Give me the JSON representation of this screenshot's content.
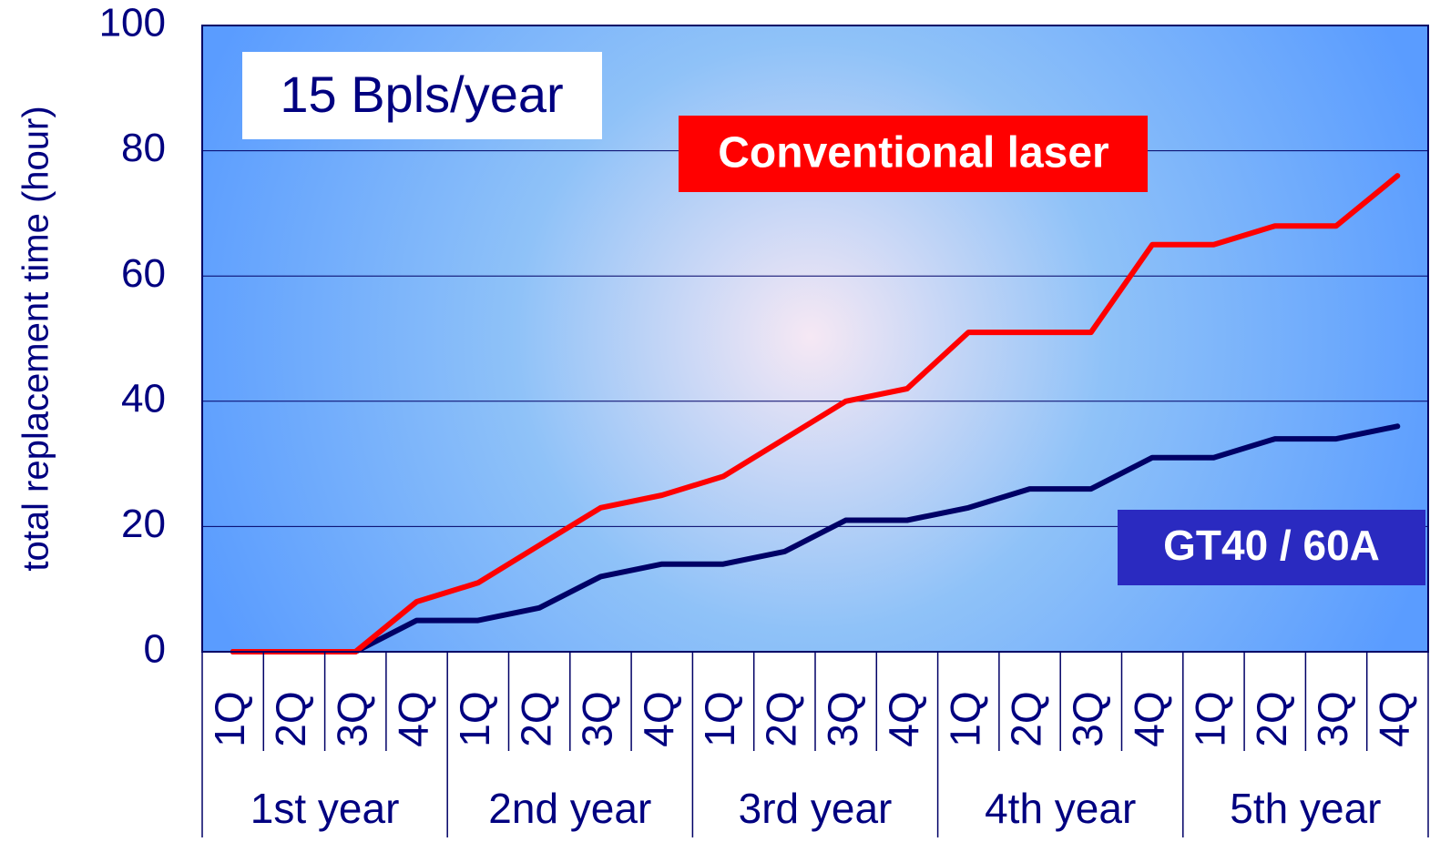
{
  "chart_data": {
    "type": "line",
    "ylabel": "total replacement time (hour)",
    "annotation": "15 Bpls/year",
    "categories": [
      "1Q",
      "2Q",
      "3Q",
      "4Q",
      "1Q",
      "2Q",
      "3Q",
      "4Q",
      "1Q",
      "2Q",
      "3Q",
      "4Q",
      "1Q",
      "2Q",
      "3Q",
      "4Q",
      "1Q",
      "2Q",
      "3Q",
      "4Q"
    ],
    "category_groups": [
      "1st year",
      "2nd year",
      "3rd year",
      "4th year",
      "5th year"
    ],
    "series": [
      {
        "name": "Conventional laser",
        "color": "#ff0000",
        "values": [
          0,
          0,
          0,
          8,
          11,
          17,
          23,
          25,
          28,
          34,
          40,
          42,
          51,
          51,
          51,
          65,
          65,
          68,
          68,
          76
        ]
      },
      {
        "name": "GT40 / 60A",
        "color": "#000066",
        "values": [
          0,
          0,
          0,
          5,
          5,
          7,
          12,
          14,
          14,
          16,
          21,
          21,
          23,
          26,
          26,
          31,
          31,
          34,
          34,
          36
        ]
      }
    ],
    "ylim": [
      0,
      100
    ],
    "yticks": [
      0,
      20,
      40,
      60,
      80,
      100
    ],
    "grid": true
  }
}
